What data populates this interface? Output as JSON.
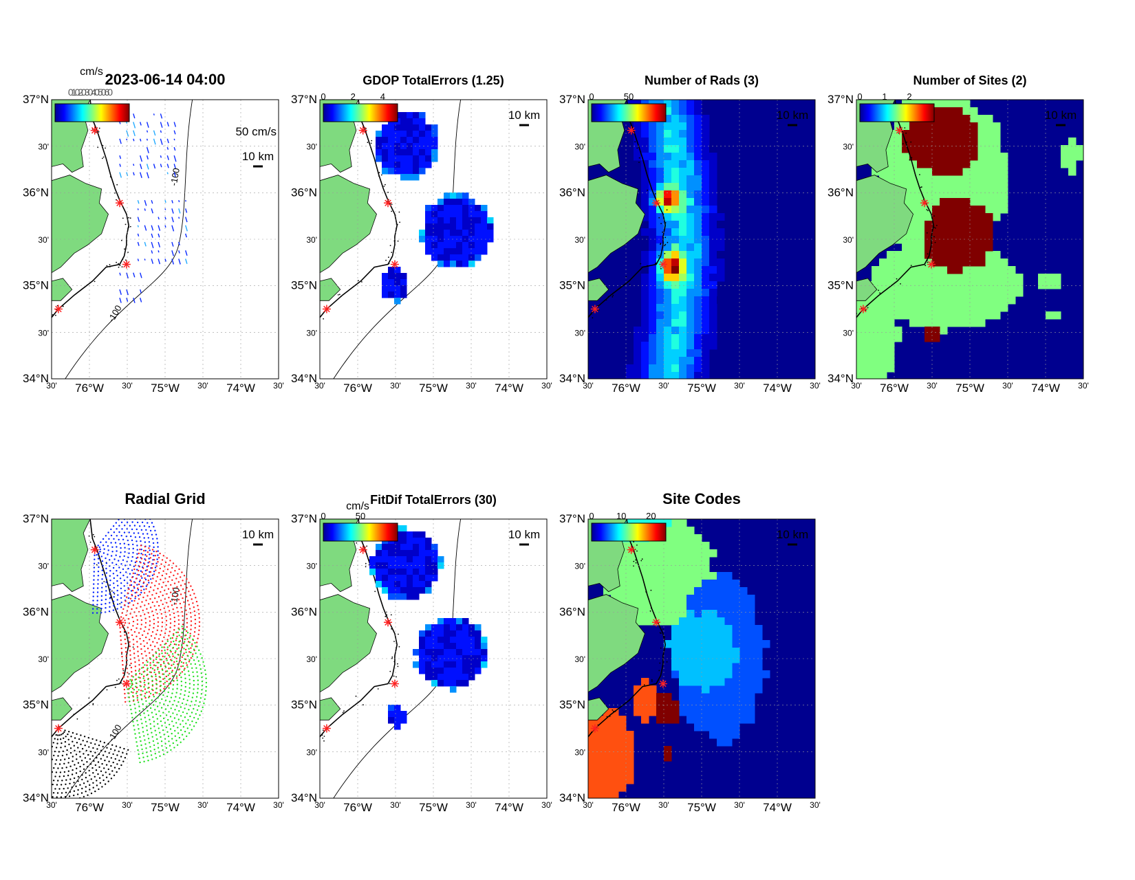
{
  "figure": {
    "colors": {
      "land": "#7FDA7F",
      "ocean": "#00008F",
      "site_marker": "#FF2020",
      "grid": "#9A9A9A",
      "coast": "#000000"
    },
    "axes": {
      "lat_labels": [
        "37°N",
        "30'",
        "36°N",
        "30'",
        "35°N",
        "30'",
        "34°N"
      ],
      "lon_labels": [
        "30'",
        "76°W",
        "30'",
        "75°W",
        "30'",
        "74°W",
        "30'"
      ],
      "lat_range": [
        34,
        37
      ],
      "lon_range": [
        -76.5,
        -73.5
      ]
    },
    "scale_label": "10 km",
    "isobath_label": "-100",
    "isobath_label_2": "-100",
    "panels": [
      {
        "id": "velocity",
        "title": "2023-06-14 04:00",
        "colorbar_unit": "cm/s",
        "colorbar_ticks": [],
        "legend_vector": "50 cm/s",
        "overlap_text": "0102030405060",
        "icon": "vector-field-icon"
      },
      {
        "id": "gdop",
        "title": "GDOP TotalErrors (1.25)",
        "colorbar_unit": "",
        "colorbar_ticks": [
          "0",
          "2",
          "4"
        ],
        "icon": "heatmap-icon"
      },
      {
        "id": "num-rads",
        "title": "Number of Rads (3)",
        "colorbar_unit": "",
        "colorbar_ticks": [
          "0",
          "50"
        ],
        "icon": "heatmap-icon"
      },
      {
        "id": "num-sites",
        "title": "Number of Sites (2)",
        "colorbar_unit": "",
        "colorbar_ticks": [
          "0",
          "1",
          "2"
        ],
        "icon": "heatmap-icon"
      },
      {
        "id": "radial-grid",
        "title": "Radial Grid",
        "colorbar_unit": "",
        "colorbar_ticks": [],
        "icon": "dot-grid-icon"
      },
      {
        "id": "fitdif",
        "title": "FitDif TotalErrors (30)",
        "colorbar_unit": "cm/s",
        "colorbar_ticks": [
          "0",
          "50"
        ],
        "icon": "heatmap-icon"
      },
      {
        "id": "site-codes",
        "title": "Site Codes",
        "colorbar_unit": "",
        "colorbar_ticks": [
          "0",
          "10",
          "20"
        ],
        "icon": "heatmap-icon"
      }
    ]
  }
}
